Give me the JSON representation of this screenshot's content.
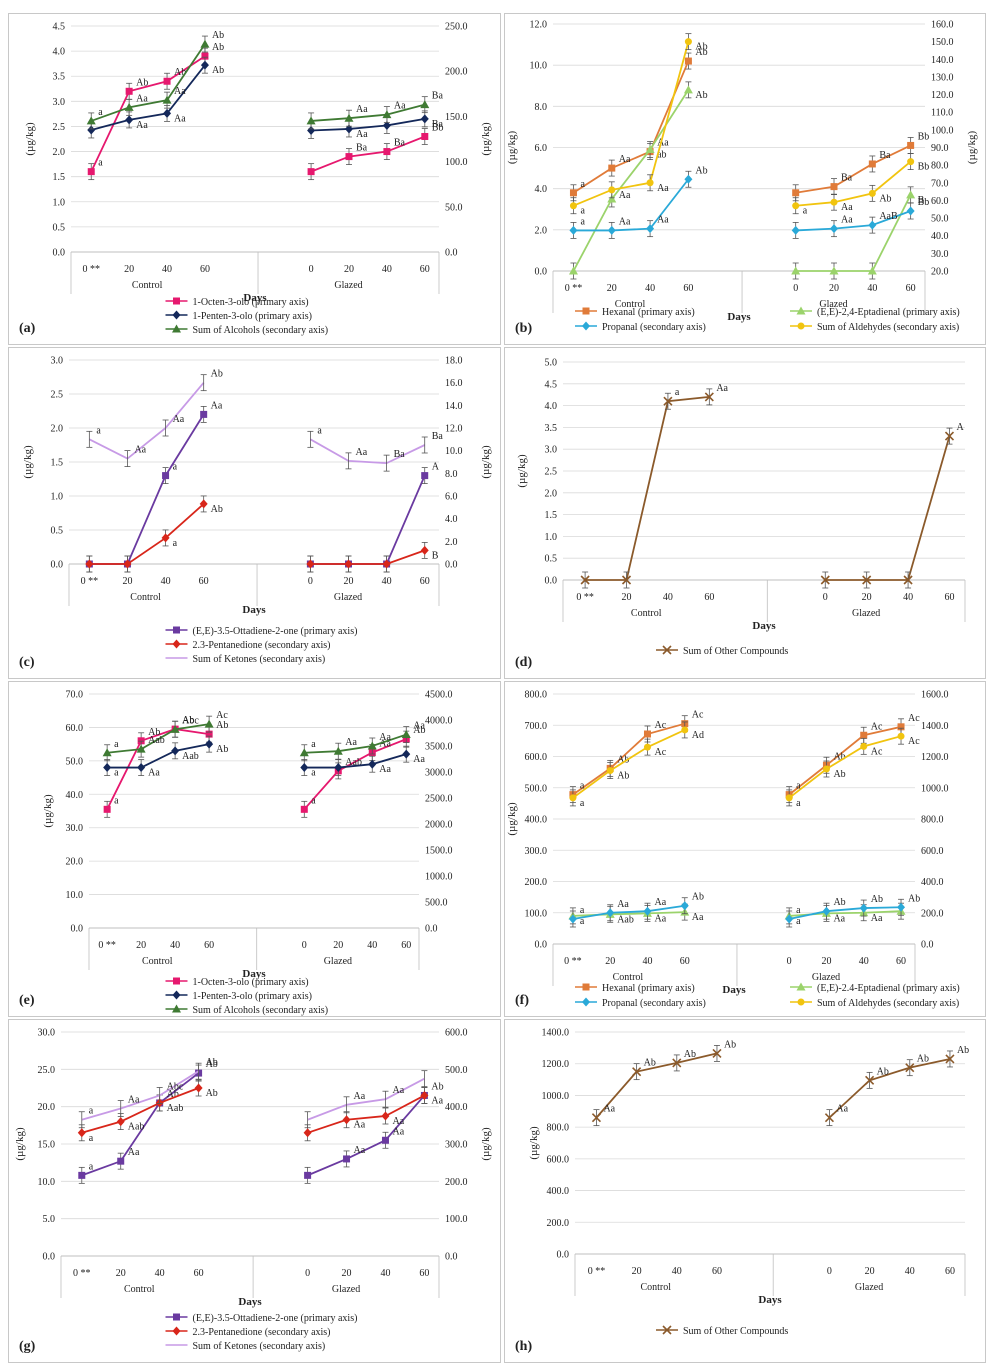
{
  "figure": {
    "panels_order": [
      "a",
      "b",
      "c",
      "d",
      "e",
      "f",
      "g",
      "h"
    ]
  },
  "colors": {
    "pink": "#e6186e",
    "navy": "#14285a",
    "green": "#3f7a33",
    "orange": "#e07b39",
    "lightgreen": "#9bd36b",
    "cyan": "#2aa9d8",
    "yellow": "#f1c40f",
    "purple": "#6a3aa0",
    "red": "#d8261a",
    "lavender": "#c79ae6",
    "brown": "#8b5a2b",
    "grid": "#d9d9d9",
    "axis": "#bfbfbf"
  },
  "chart_data": [
    {
      "panel": "a",
      "label": "(a)",
      "type": "line",
      "categories": [
        "0 **",
        "20",
        "40",
        "60",
        "0",
        "20",
        "40",
        "60"
      ],
      "groups": [
        "Control",
        "Glazed"
      ],
      "xlabel": "Days",
      "ylabel_left": "(µg/kg)",
      "ylabel_right": "(µg/kg)",
      "ylim_left": [
        0,
        4.5
      ],
      "yticks_left": [
        "0.0",
        "0.5",
        "1.0",
        "1.5",
        "2.0",
        "2.5",
        "3.0",
        "3.5",
        "4.0",
        "4.5"
      ],
      "ylim_right": [
        0,
        250
      ],
      "yticks_right": [
        "0.0",
        "50.0",
        "100.0",
        "150.0",
        "200.0",
        "250.0"
      ],
      "series": [
        {
          "name": "1-Octen-3-olo (primary axis)",
          "axis": "left",
          "color": "pink",
          "marker": "square",
          "values": [
            1.6,
            3.2,
            3.4,
            3.9,
            1.6,
            1.9,
            2.0,
            2.3
          ],
          "labels": [
            "a",
            "Ab",
            "Ab",
            "Ab",
            "",
            "Ba",
            "Ba",
            "Bb"
          ]
        },
        {
          "name": "1-Penten-3-olo (primary axis)",
          "axis": "left",
          "color": "navy",
          "marker": "diamond",
          "values": [
            2.43,
            2.63,
            2.76,
            3.72,
            2.42,
            2.45,
            2.52,
            2.65
          ],
          "labels": [
            "",
            "Aa",
            "Aa",
            "Ab",
            "",
            "Aa",
            "",
            "Ba"
          ]
        },
        {
          "name": "Sum of Alcohols (secondary axis)",
          "axis": "right",
          "color": "green",
          "marker": "triangle",
          "values": [
            145,
            160,
            168,
            230,
            145,
            148,
            152,
            163
          ],
          "labels": [
            "a",
            "Aa",
            "Aa",
            "Ab",
            "",
            "Aa",
            "Aa",
            "Ba"
          ]
        }
      ]
    },
    {
      "panel": "b",
      "label": "(b)",
      "type": "line",
      "categories": [
        "0 **",
        "20",
        "40",
        "60",
        "0",
        "20",
        "40",
        "60"
      ],
      "groups": [
        "Control",
        "Glazed"
      ],
      "xlabel": "Days",
      "ylabel_left": "(µg/kg)",
      "ylabel_right": "(µg/kg)",
      "ylim_left": [
        0,
        12
      ],
      "yticks_left": [
        "0.0",
        "2.0",
        "4.0",
        "6.0",
        "8.0",
        "10.0",
        "12.0"
      ],
      "ylim_right": [
        20,
        160
      ],
      "yticks_right": [
        "20.0",
        "30.0",
        "40.0",
        "50.0",
        "60.0",
        "70.0",
        "80.0",
        "90.0",
        "100.0",
        "110.0",
        "120.0",
        "130.0",
        "140.0",
        "150.0",
        "160.0"
      ],
      "series": [
        {
          "name": "Hexanal (primary axis)",
          "axis": "left",
          "color": "orange",
          "marker": "square",
          "values": [
            3.8,
            5.0,
            5.8,
            10.2,
            3.8,
            4.1,
            5.2,
            6.1
          ],
          "labels": [
            "a",
            "Aa",
            "Aa",
            "Ab",
            "",
            "Ba",
            "Ba",
            "Bb"
          ]
        },
        {
          "name": "(E,E)-2,4-Eptadienal (primary axis)",
          "axis": "left",
          "color": "lightgreen",
          "marker": "triangle",
          "values": [
            0,
            3.5,
            5.9,
            8.8,
            0,
            0,
            0,
            3.7
          ],
          "labels": [
            "",
            "",
            "ab",
            "Ab",
            "",
            "",
            "",
            "B"
          ]
        },
        {
          "name": "Propanal (secondary axis)",
          "axis": "right",
          "color": "cyan",
          "marker": "diamond",
          "values": [
            43,
            43,
            44,
            72,
            43,
            44,
            46,
            54
          ],
          "labels": [
            "a",
            "Aa",
            "Aa",
            "Ab",
            "",
            "Aa",
            "AaB",
            "Bb"
          ]
        },
        {
          "name": "Sum of Aldehydes (secondary axis)",
          "axis": "right",
          "color": "yellow",
          "marker": "circle",
          "values": [
            57,
            66,
            70,
            150,
            57,
            59,
            64,
            82
          ],
          "labels": [
            "a",
            "Aa",
            "Aa",
            "Ab",
            "a",
            "Aa",
            "Ab",
            "Bb"
          ]
        }
      ]
    },
    {
      "panel": "c",
      "label": "(c)",
      "type": "line",
      "categories": [
        "0 **",
        "20",
        "40",
        "60",
        "0",
        "20",
        "40",
        "60"
      ],
      "groups": [
        "Control",
        "Glazed"
      ],
      "xlabel": "Days",
      "ylabel_left": "(µg/kg)",
      "ylabel_right": "(µg/kg)",
      "ylim_left": [
        0,
        3
      ],
      "yticks_left": [
        "0.0",
        "0.5",
        "1.0",
        "1.5",
        "2.0",
        "2.5",
        "3.0"
      ],
      "ylim_right": [
        0,
        18
      ],
      "yticks_right": [
        "0.0",
        "2.0",
        "4.0",
        "6.0",
        "8.0",
        "10.0",
        "12.0",
        "14.0",
        "16.0",
        "18.0"
      ],
      "series": [
        {
          "name": "(E,E)-3.5-Ottadiene-2-one (primary axis)",
          "axis": "left",
          "color": "purple",
          "marker": "square",
          "values": [
            0,
            0,
            1.3,
            2.2,
            0,
            0,
            0,
            1.3
          ],
          "labels": [
            "",
            "",
            "a",
            "Aa",
            "",
            "",
            "",
            "A"
          ]
        },
        {
          "name": "2.3-Pentanedione (secondary axis)",
          "axis": "right",
          "color": "red",
          "marker": "diamond",
          "values": [
            0,
            0,
            2.3,
            5.3,
            0,
            0,
            0,
            1.2
          ],
          "labels": [
            "",
            "",
            "a",
            "Ab",
            "",
            "",
            "",
            "B"
          ]
        },
        {
          "name": "Sum of Ketones (secondary axis)",
          "axis": "right",
          "color": "lavender",
          "marker": "none",
          "values": [
            11,
            9.3,
            12,
            16,
            11,
            9.1,
            8.9,
            10.5
          ],
          "labels": [
            "a",
            "Aa",
            "Aa",
            "Ab",
            "a",
            "Aa",
            "Ba",
            "Ba"
          ]
        }
      ]
    },
    {
      "panel": "d",
      "label": "(d)",
      "type": "line",
      "categories": [
        "0 **",
        "20",
        "40",
        "60",
        "0",
        "20",
        "40",
        "60"
      ],
      "groups": [
        "Control",
        "Glazed"
      ],
      "xlabel": "Days",
      "ylabel_left": "(µg/kg)",
      "ylim_left": [
        0,
        5
      ],
      "yticks_left": [
        "0.0",
        "0.5",
        "1.0",
        "1.5",
        "2.0",
        "2.5",
        "3.0",
        "3.5",
        "4.0",
        "4.5",
        "5.0"
      ],
      "series": [
        {
          "name": "Sum of Other Compounds",
          "axis": "left",
          "color": "brown",
          "marker": "x",
          "values": [
            0,
            0,
            4.1,
            4.2,
            0,
            0,
            0,
            3.3
          ],
          "labels": [
            "",
            "",
            "a",
            "Aa",
            "",
            "",
            "",
            "A"
          ]
        }
      ]
    },
    {
      "panel": "e",
      "label": "(e)",
      "type": "line",
      "categories": [
        "0 **",
        "20",
        "40",
        "60",
        "0",
        "20",
        "40",
        "60"
      ],
      "groups": [
        "Control",
        "Glazed"
      ],
      "xlabel": "Days",
      "ylabel_left": "(µg/kg)",
      "ylim_left": [
        0,
        70
      ],
      "yticks_left": [
        "0.0",
        "10.0",
        "20.0",
        "30.0",
        "40.0",
        "50.0",
        "60.0",
        "70.0"
      ],
      "ylim_right": [
        0,
        4500
      ],
      "yticks_right": [
        "0.0",
        "500.0",
        "1000.0",
        "1500.0",
        "2000.0",
        "2500.0",
        "3000.0",
        "3500.0",
        "4000.0",
        "4500.0"
      ],
      "series": [
        {
          "name": "1-Octen-3-olo (primary axis)",
          "axis": "left",
          "color": "pink",
          "marker": "square",
          "values": [
            35.5,
            56,
            59.5,
            58,
            35.5,
            47,
            52.5,
            56.5
          ],
          "labels": [
            "a",
            "Ab",
            "Ab",
            "Ab",
            "a",
            "Aab",
            "Aa",
            "Ab"
          ]
        },
        {
          "name": "1-Penten-3-olo (primary axis)",
          "axis": "left",
          "color": "navy",
          "marker": "diamond",
          "values": [
            48,
            48,
            53,
            55,
            48,
            48,
            49,
            52
          ],
          "labels": [
            "a",
            "Aa",
            "Aab",
            "Ab",
            "a",
            "",
            "Aa",
            "Aa"
          ]
        },
        {
          "name": "Sum of Alcohols (secondary axis)",
          "axis": "right",
          "color": "green",
          "marker": "triangle",
          "values": [
            3370,
            3440,
            3820,
            3920,
            3370,
            3400,
            3500,
            3720
          ],
          "labels": [
            "a",
            "Aab",
            "Abc",
            "Ac",
            "a",
            "Aa",
            "Aa",
            "Aa"
          ]
        }
      ]
    },
    {
      "panel": "f",
      "label": "(f)",
      "type": "line",
      "categories": [
        "0 **",
        "20",
        "40",
        "60",
        "0",
        "20",
        "40",
        "60"
      ],
      "groups": [
        "Control",
        "Glazed"
      ],
      "xlabel": "Days",
      "ylabel_left": "(µg/kg)",
      "ylim_left": [
        0,
        800
      ],
      "yticks_left": [
        "0.0",
        "100.0",
        "200.0",
        "300.0",
        "400.0",
        "500.0",
        "600.0",
        "700.0",
        "800.0"
      ],
      "ylim_right": [
        0,
        1600
      ],
      "yticks_right": [
        "0.0",
        "200.0",
        "400.0",
        "600.0",
        "800.0",
        "1000.0",
        "1200.0",
        "1400.0",
        "1600.0"
      ],
      "series": [
        {
          "name": "Hexanal (primary axis)",
          "axis": "left",
          "color": "orange",
          "marker": "square",
          "values": [
            478,
            562,
            672,
            705,
            478,
            572,
            668,
            695
          ],
          "labels": [
            "a",
            "Ab",
            "Ac",
            "Ac",
            "a",
            "Ab",
            "Ac",
            "Ac"
          ]
        },
        {
          "name": "(E,E)-2.4-Eptadienal (primary axis)",
          "axis": "left",
          "color": "lightgreen",
          "marker": "triangle",
          "values": [
            90,
            95,
            98,
            102,
            90,
            98,
            100,
            105
          ],
          "labels": [
            "a",
            "Aab",
            "Aa",
            "Aa",
            "a",
            "Aa",
            "Aa",
            ""
          ]
        },
        {
          "name": "Propanal (secondary axis)",
          "axis": "right",
          "color": "cyan",
          "marker": "diamond",
          "values": [
            160,
            200,
            210,
            245,
            160,
            210,
            230,
            235
          ],
          "labels": [
            "a",
            "Aa",
            "Aa",
            "Ab",
            "a",
            "Ab",
            "Ab",
            "Ab"
          ]
        },
        {
          "name": "Sum of Aldehydes (secondary axis)",
          "axis": "right",
          "color": "yellow",
          "marker": "circle",
          "values": [
            935,
            1110,
            1260,
            1370,
            935,
            1120,
            1265,
            1330
          ],
          "labels": [
            "a",
            "Ab",
            "Ac",
            "Ad",
            "a",
            "Ab",
            "Ac",
            "Ac"
          ]
        }
      ]
    },
    {
      "panel": "g",
      "label": "(g)",
      "type": "line",
      "categories": [
        "0 **",
        "20",
        "40",
        "60",
        "0",
        "20",
        "40",
        "60"
      ],
      "groups": [
        "Control",
        "Glazed"
      ],
      "xlabel": "Days",
      "ylabel_left": "(µg/kg)",
      "ylabel_right": "(µg/kg)",
      "ylim_left": [
        0,
        30
      ],
      "yticks_left": [
        "0.0",
        "5.0",
        "10.0",
        "15.0",
        "20.0",
        "25.0",
        "30.0"
      ],
      "ylim_right": [
        0,
        600
      ],
      "yticks_right": [
        "0.0",
        "100.0",
        "200.0",
        "300.0",
        "400.0",
        "500.0",
        "600.0"
      ],
      "series": [
        {
          "name": "(E,E)-3.5-Ottadiene-2-one (primary axis)",
          "axis": "left",
          "color": "purple",
          "marker": "square",
          "values": [
            10.8,
            12.7,
            20.5,
            24.5,
            10.8,
            13,
            15.5,
            21.5
          ],
          "labels": [
            "a",
            "Aa",
            "Ab",
            "Ab",
            "",
            "Aa",
            "Aa",
            "Ab"
          ]
        },
        {
          "name": "2.3-Pentanedione (secondary axis)",
          "axis": "right",
          "color": "red",
          "marker": "diamond",
          "values": [
            330,
            360,
            410,
            450,
            330,
            365,
            375,
            430
          ],
          "labels": [
            "a",
            "Aab",
            "Aab",
            "Ab",
            "",
            "Aa",
            "Aa",
            "Aa"
          ]
        },
        {
          "name": "Sum of Ketones (secondary axis)",
          "axis": "right",
          "color": "lavender",
          "marker": "none",
          "values": [
            365,
            395,
            430,
            495,
            365,
            405,
            420,
            475
          ],
          "labels": [
            "a",
            "Aa",
            "Abc",
            "Ab",
            "",
            "Aa",
            "Aa",
            ""
          ]
        }
      ]
    },
    {
      "panel": "h",
      "label": "(h)",
      "type": "line",
      "categories": [
        "0 **",
        "20",
        "40",
        "60",
        "0",
        "20",
        "40",
        "60"
      ],
      "groups": [
        "Control",
        "Glazed"
      ],
      "xlabel": "Days",
      "ylabel_left": "(µg/kg)",
      "ylim_left": [
        0,
        1400
      ],
      "yticks_left": [
        "0.0",
        "200.0",
        "400.0",
        "600.0",
        "800.0",
        "1000.0",
        "1200.0",
        "1400.0"
      ],
      "series": [
        {
          "name": "Sum of Other Compounds",
          "axis": "left",
          "color": "brown",
          "marker": "x",
          "values": [
            860,
            1150,
            1205,
            1265,
            860,
            1095,
            1175,
            1230
          ],
          "labels": [
            "Aa",
            "Ab",
            "Ab",
            "Ab",
            "Aa",
            "Ab",
            "Ab",
            "Ab"
          ]
        }
      ]
    }
  ]
}
